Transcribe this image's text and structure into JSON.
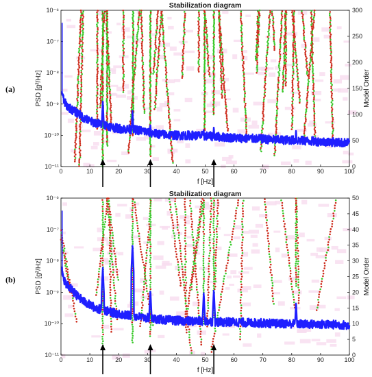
{
  "chart_data": [
    {
      "type": "scatter",
      "panel_label": "(a)",
      "title": "Stabilization diagram",
      "xlabel": "f [Hz]",
      "ylabel": "PSD [g²/Hz]",
      "y2label": "Model Order",
      "xlim": [
        0,
        100
      ],
      "ylim_log": [
        -11,
        -6
      ],
      "y2lim": [
        0,
        300
      ],
      "x_ticks": [
        "0",
        "10",
        "20",
        "30",
        "40",
        "50",
        "60",
        "70",
        "80",
        "90",
        "100"
      ],
      "y_ticks": [
        "10⁻¹¹",
        "10⁻¹⁰",
        "10⁻⁹",
        "10⁻⁸",
        "10⁻⁷",
        "10⁻⁶"
      ],
      "y2_ticks": [
        "0",
        "50",
        "100",
        "150",
        "200",
        "250",
        "300"
      ],
      "psd": {
        "color": "#1f1fff",
        "x": [
          0.3,
          1,
          2,
          4,
          6,
          8,
          10,
          12,
          14,
          16,
          18,
          20,
          22,
          25,
          28,
          30,
          33,
          36,
          40,
          45,
          50,
          55,
          60,
          65,
          70,
          75,
          80,
          85,
          90,
          95,
          100
        ],
        "log10": [
          -8.6,
          -8.9,
          -9.05,
          -9.2,
          -9.3,
          -9.45,
          -9.55,
          -9.6,
          -9.65,
          -9.68,
          -9.75,
          -9.78,
          -9.8,
          -9.82,
          -9.85,
          -9.9,
          -9.95,
          -9.98,
          -10.0,
          -10.0,
          -10.02,
          -10.05,
          -10.08,
          -10.1,
          -10.12,
          -10.15,
          -10.15,
          -10.18,
          -10.2,
          -10.22,
          -10.25
        ],
        "peaks": [
          {
            "f": 14.5,
            "log10": -8.9
          },
          {
            "f": 24.8,
            "log10": -9.2
          },
          {
            "f": 31,
            "log10": -9.6
          },
          {
            "f": 49.5,
            "log10": -9.8
          },
          {
            "f": 53,
            "log10": -9.7
          },
          {
            "f": 81.5,
            "log10": -9.8
          }
        ]
      },
      "stable_modes": [
        {
          "f": 14.5,
          "order_from": 0,
          "order_to": 300
        },
        {
          "f": 16,
          "order_from": 40,
          "order_to": 300
        },
        {
          "f": 25,
          "order_from": 60,
          "order_to": 300
        },
        {
          "f": 31,
          "order_from": 20,
          "order_to": 300
        },
        {
          "f": 49.8,
          "order_from": 70,
          "order_to": 300
        },
        {
          "f": 53,
          "order_from": 100,
          "order_to": 300
        }
      ],
      "arrows_at_hz": [
        14.5,
        31,
        53
      ],
      "colors": {
        "stable": "#39c82a",
        "unstable": "#cc2a1a",
        "shade": "#f7dcef"
      }
    },
    {
      "type": "scatter",
      "panel_label": "(b)",
      "title": "Stabilization diagram",
      "xlabel": "f [Hz]",
      "ylabel": "PSD [g²/Hz]",
      "y2label": "Model Order",
      "xlim": [
        0,
        100
      ],
      "ylim_log": [
        -11,
        -6
      ],
      "y2lim": [
        0,
        50
      ],
      "x_ticks": [
        "0",
        "10",
        "20",
        "30",
        "40",
        "50",
        "60",
        "70",
        "80",
        "90",
        "100"
      ],
      "y_ticks": [
        "10⁻¹¹",
        "10⁻¹⁰",
        "10⁻⁹",
        "10⁻⁸",
        "10⁻⁷",
        "10⁻⁶"
      ],
      "y2_ticks": [
        "0",
        "5",
        "10",
        "15",
        "20",
        "25",
        "30",
        "35",
        "40",
        "45",
        "50"
      ],
      "psd": {
        "color": "#1f1fff",
        "x": [
          0.3,
          1,
          2,
          4,
          6,
          8,
          10,
          12,
          14,
          16,
          18,
          20,
          22,
          25,
          28,
          30,
          33,
          36,
          40,
          45,
          50,
          55,
          60,
          65,
          70,
          75,
          80,
          85,
          90,
          95,
          100
        ],
        "log10": [
          -8.3,
          -8.6,
          -8.75,
          -8.95,
          -9.15,
          -9.3,
          -9.4,
          -9.5,
          -9.55,
          -9.6,
          -9.65,
          -9.68,
          -9.72,
          -9.75,
          -9.8,
          -9.82,
          -9.85,
          -9.88,
          -9.9,
          -9.92,
          -9.92,
          -9.95,
          -9.95,
          -9.97,
          -9.98,
          -10.0,
          -10.0,
          -10.02,
          -10.02,
          -10.03,
          -10.05
        ],
        "peaks": [
          {
            "f": 14.5,
            "log10": -8.2
          },
          {
            "f": 24.8,
            "log10": -7.5
          },
          {
            "f": 31,
            "log10": -8.9
          },
          {
            "f": 49.5,
            "log10": -9.0
          },
          {
            "f": 53,
            "log10": -8.9
          },
          {
            "f": 81.5,
            "log10": -9.3
          }
        ]
      },
      "stable_modes": [
        {
          "f": 14.5,
          "order_from": 3,
          "order_to": 50
        },
        {
          "f": 24.8,
          "order_from": 4,
          "order_to": 50
        },
        {
          "f": 31,
          "order_from": 6,
          "order_to": 50
        },
        {
          "f": 49.5,
          "order_from": 10,
          "order_to": 50
        },
        {
          "f": 53,
          "order_from": 12,
          "order_to": 50
        },
        {
          "f": 81.5,
          "order_from": 22,
          "order_to": 50
        }
      ],
      "arrows_at_hz": [
        14.5,
        31,
        53
      ],
      "colors": {
        "stable": "#39c82a",
        "unstable": "#cc2a1a",
        "shade": "#f7dcef"
      }
    }
  ]
}
